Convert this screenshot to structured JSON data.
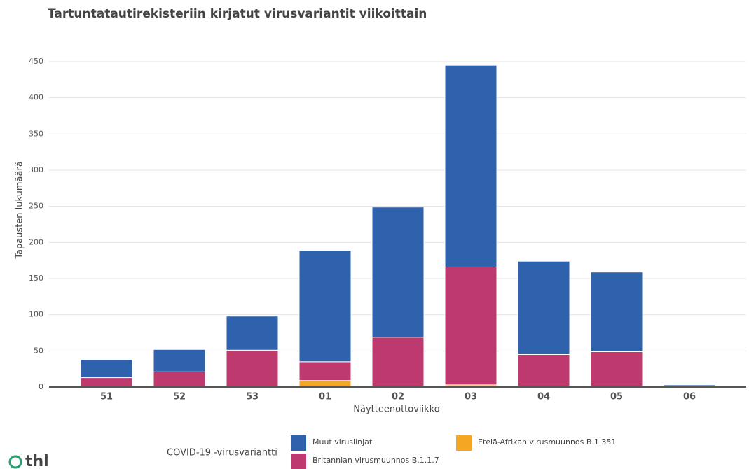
{
  "chart_data": {
    "type": "stacked_bar",
    "title": "Tartuntatautirekisteriin kirjatut virusvariantit viikoittain",
    "x_label": "Näytteenottoviikko",
    "y_label": "Tapausten lukumäärä",
    "legend_title": "COVID-19 -virusvariantti",
    "logo": "thl",
    "categories": [
      "51",
      "52",
      "53",
      "01",
      "02",
      "03",
      "04",
      "05",
      "06"
    ],
    "series": [
      {
        "name": "Etelä-Afrikan virusmuunnos B.1.351",
        "color": "#f5a623",
        "values": [
          0,
          0,
          0,
          9,
          1,
          3,
          1,
          1,
          0
        ]
      },
      {
        "name": "Britannian virusmuunnos B.1.1.7",
        "color": "#be3a6e",
        "values": [
          13,
          21,
          51,
          26,
          68,
          163,
          44,
          48,
          0
        ]
      },
      {
        "name": "Muut viruslinjat",
        "color": "#2f62ad",
        "values": [
          25,
          31,
          47,
          154,
          180,
          279,
          129,
          110,
          3
        ]
      }
    ],
    "ylim": [
      0,
      450
    ],
    "yticks": [
      0,
      50,
      100,
      150,
      200,
      250,
      300,
      350,
      400,
      450
    ],
    "grid": true
  }
}
